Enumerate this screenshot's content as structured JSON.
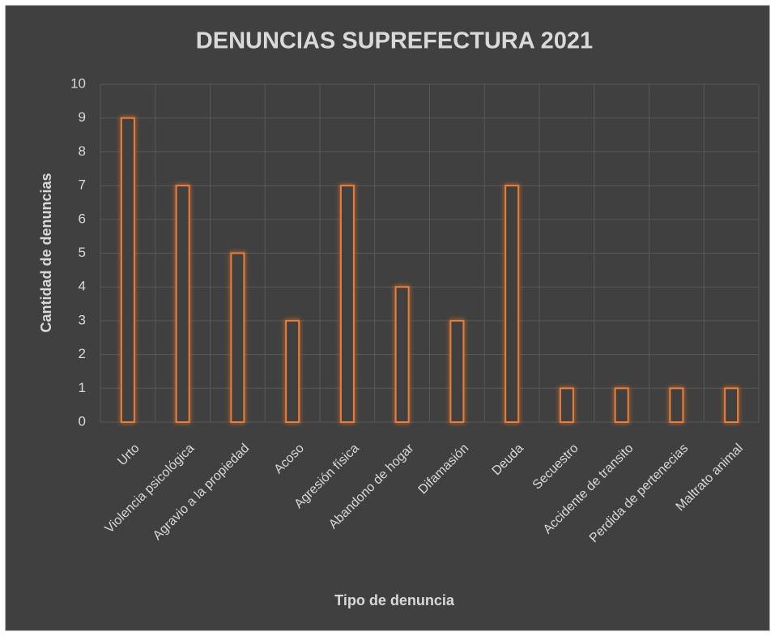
{
  "chart_data": {
    "type": "bar",
    "title": "DENUNCIAS SUPREFECTURA 2021",
    "x_label": "Tipo de denuncia",
    "y_label": "Cantidad de denuncias",
    "categories": [
      "Urto",
      "Violencia psicológica",
      "Agravio a la propiedad",
      "Acoso",
      "Agresión física",
      "Abandono de hogar",
      "Difamasión",
      "Deuda",
      "Secuestro",
      "Accidente de transito",
      "Perdida de pertenecias",
      "Maltrato animal"
    ],
    "values": [
      9,
      7,
      5,
      3,
      7,
      4,
      3,
      7,
      1,
      1,
      1,
      1
    ],
    "color": "#ed7d31",
    "ylim": [
      0,
      10
    ],
    "yticks": [
      0,
      1,
      2,
      3,
      4,
      5,
      6,
      7,
      8,
      9,
      10
    ],
    "grid": true
  }
}
